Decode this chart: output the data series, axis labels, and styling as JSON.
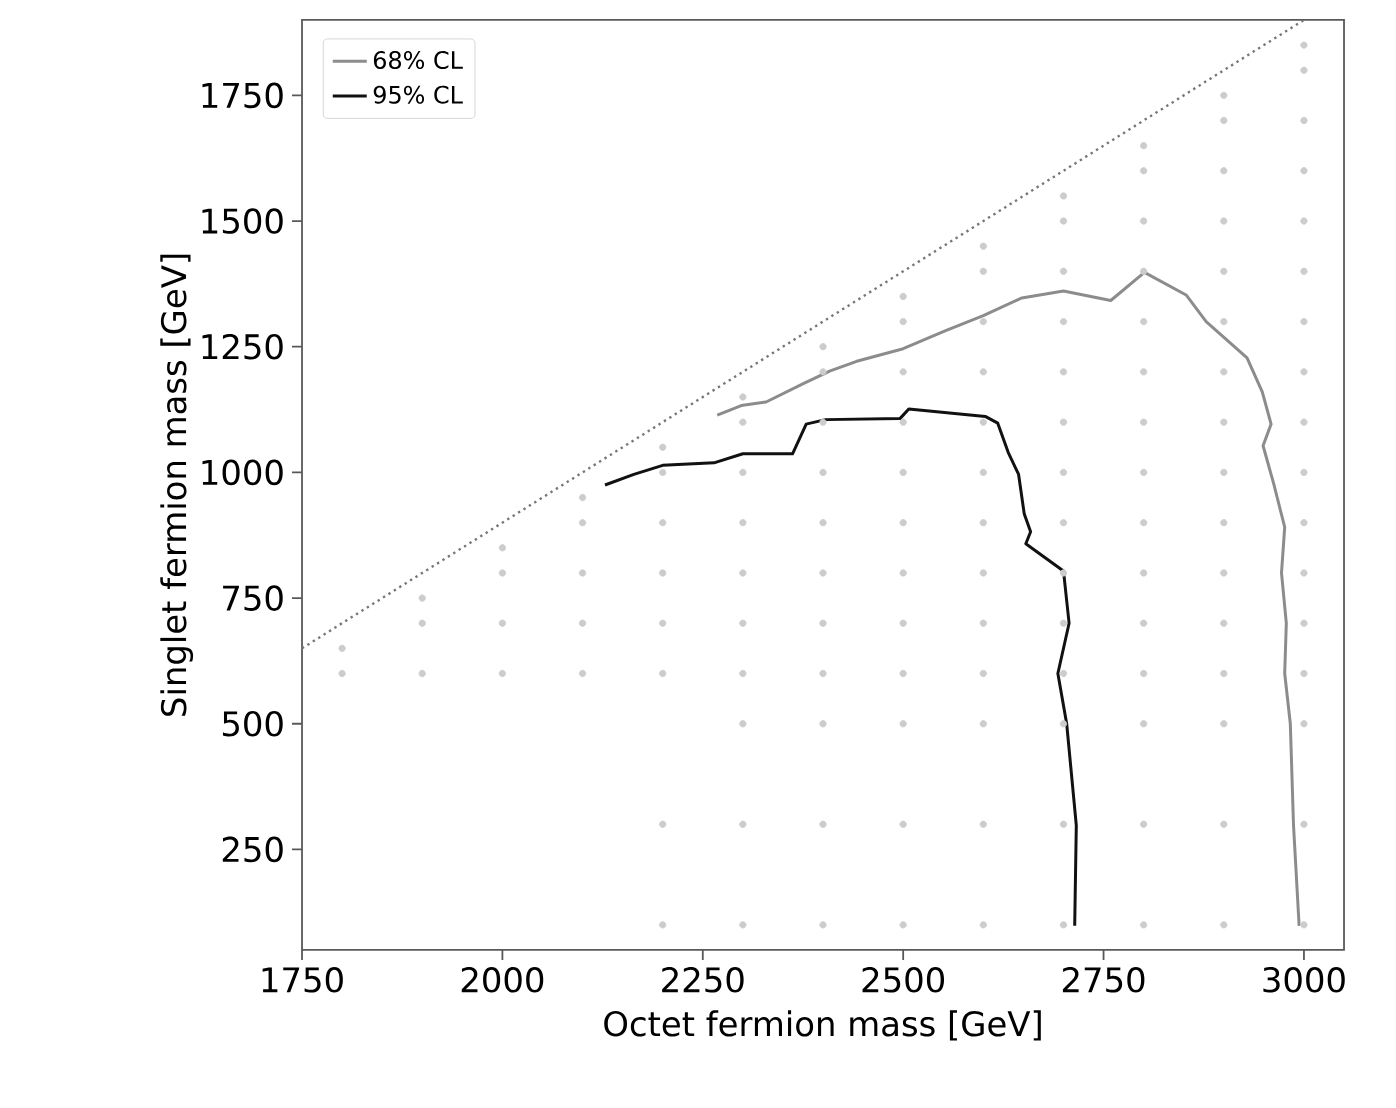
{
  "chart_data": {
    "type": "line",
    "xlabel": "Octet fermion mass [GeV]",
    "ylabel": "Singlet fermion mass [GeV]",
    "xlim": [
      1750,
      3050
    ],
    "ylim": [
      50,
      1900
    ],
    "xticks": [
      1750,
      2000,
      2250,
      2500,
      2750,
      3000
    ],
    "yticks": [
      250,
      500,
      750,
      1000,
      1250,
      1500,
      1750
    ],
    "legend": "top left",
    "grid": false,
    "series": [
      {
        "type": "scatter",
        "marker": "circle",
        "color": "#cccccc",
        "x": [
          1800,
          1800,
          1900,
          1900,
          1900,
          2000,
          2000,
          2000,
          2000,
          2100,
          2100,
          2100,
          2100,
          2100,
          2200,
          2200,
          2200,
          2200,
          2200,
          2200,
          2200,
          2200,
          2300,
          2300,
          2300,
          2300,
          2300,
          2300,
          2300,
          2300,
          2300,
          2300,
          2400,
          2400,
          2400,
          2400,
          2400,
          2400,
          2400,
          2400,
          2400,
          2400,
          2400,
          2500,
          2500,
          2500,
          2500,
          2500,
          2500,
          2500,
          2500,
          2500,
          2500,
          2500,
          2500,
          2600,
          2600,
          2600,
          2600,
          2600,
          2600,
          2600,
          2600,
          2600,
          2600,
          2600,
          2600,
          2600,
          2700,
          2700,
          2700,
          2700,
          2700,
          2700,
          2700,
          2700,
          2700,
          2700,
          2700,
          2700,
          2700,
          2700,
          2800,
          2800,
          2800,
          2800,
          2800,
          2800,
          2800,
          2800,
          2800,
          2800,
          2800,
          2800,
          2800,
          2800,
          2800,
          2900,
          2900,
          2900,
          2900,
          2900,
          2900,
          2900,
          2900,
          2900,
          2900,
          2900,
          2900,
          2900,
          2900,
          2900,
          2900,
          3000,
          3000,
          3000,
          3000,
          3000,
          3000,
          3000,
          3000,
          3000,
          3000,
          3000,
          3000,
          3000,
          3000,
          3000,
          3000,
          3000
        ],
        "values": [
          600,
          650,
          600,
          700,
          750,
          600,
          700,
          800,
          850,
          600,
          700,
          800,
          900,
          950,
          100,
          300,
          600,
          700,
          800,
          900,
          1000,
          1050,
          100,
          300,
          500,
          600,
          700,
          800,
          900,
          1000,
          1100,
          1150,
          100,
          300,
          500,
          600,
          700,
          800,
          900,
          1000,
          1100,
          1200,
          1250,
          100,
          300,
          500,
          600,
          700,
          800,
          900,
          1000,
          1100,
          1200,
          1300,
          1350,
          100,
          300,
          500,
          600,
          700,
          800,
          900,
          1000,
          1100,
          1200,
          1300,
          1400,
          1450,
          100,
          300,
          500,
          600,
          700,
          800,
          900,
          1000,
          1100,
          1200,
          1300,
          1400,
          1500,
          1550,
          100,
          300,
          500,
          600,
          700,
          800,
          900,
          1000,
          1100,
          1200,
          1300,
          1400,
          1500,
          1600,
          1650,
          100,
          300,
          500,
          600,
          700,
          800,
          900,
          1000,
          1100,
          1200,
          1300,
          1400,
          1500,
          1600,
          1700,
          1750,
          100,
          300,
          500,
          600,
          700,
          800,
          900,
          1000,
          1100,
          1200,
          1300,
          1400,
          1500,
          1600,
          1700,
          1800,
          1850
        ]
      },
      {
        "line_style": "dotted",
        "color": "#777777",
        "x": [
          1750,
          3000
        ],
        "values": [
          650,
          1900
        ]
      },
      {
        "name": "68% CL",
        "line_style": "solid",
        "color": "#8c8c8c",
        "x": [
          2268,
          2298,
          2329,
          2376,
          2409,
          2442,
          2500,
          2553,
          2600,
          2648,
          2700,
          2759,
          2801,
          2853,
          2878,
          2929,
          2948,
          2959,
          2949,
          2962,
          2976,
          2972,
          2978,
          2976,
          2983,
          2987,
          2994
        ],
        "values": [
          1114,
          1133,
          1140,
          1177,
          1202,
          1221,
          1246,
          1282,
          1312,
          1347,
          1361,
          1342,
          1398,
          1353,
          1300,
          1228,
          1160,
          1096,
          1053,
          979,
          891,
          800,
          700,
          600,
          500,
          298,
          98
        ]
      },
      {
        "name": "95% CL",
        "line_style": "solid",
        "color": "#111111",
        "x": [
          2128,
          2164,
          2200,
          2264,
          2300,
          2362,
          2379,
          2403,
          2496,
          2507,
          2596,
          2603,
          2618,
          2631,
          2644,
          2651,
          2659,
          2653,
          2700,
          2707,
          2693,
          2704,
          2716,
          2714
        ],
        "values": [
          975,
          996,
          1014,
          1019,
          1037,
          1037,
          1096,
          1105,
          1107,
          1126,
          1112,
          1111,
          1098,
          1040,
          996,
          918,
          882,
          858,
          804,
          700,
          600,
          500,
          298,
          98
        ]
      }
    ]
  }
}
